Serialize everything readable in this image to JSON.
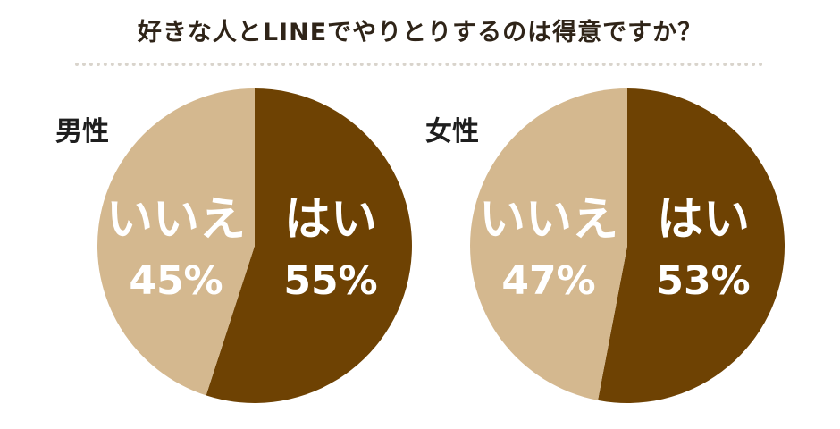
{
  "title": "好きな人とLINEでやりとりするのは得意ですか？",
  "colors": {
    "yes": "#6e4203",
    "no": "#d4b88f",
    "label": "#ffffff"
  },
  "chart_data": [
    {
      "type": "pie",
      "panel_label": "男性",
      "slices": [
        {
          "label": "はい",
          "value": 55,
          "value_text": "55%"
        },
        {
          "label": "いいえ",
          "value": 45,
          "value_text": "45%"
        }
      ]
    },
    {
      "type": "pie",
      "panel_label": "女性",
      "slices": [
        {
          "label": "はい",
          "value": 53,
          "value_text": "53%"
        },
        {
          "label": "いいえ",
          "value": 47,
          "value_text": "47%"
        }
      ]
    }
  ]
}
